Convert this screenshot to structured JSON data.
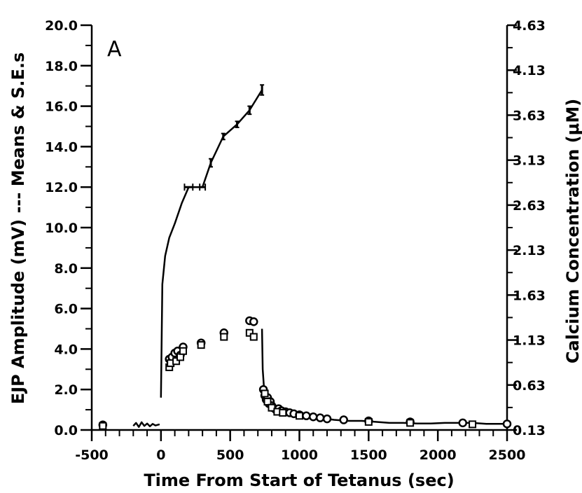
{
  "chart_data": {
    "type": "scatter",
    "panel_label": "A",
    "xlabel": "Time From Start of Tetanus (sec)",
    "ylabel_left": "EJP Amplitude (mV) --- Means & S.E.s",
    "ylabel_right": "Calcium Concentration (μM)",
    "xlim": [
      -500,
      2500
    ],
    "ylim_left": [
      0,
      20
    ],
    "ylim_right": [
      0.13,
      4.63
    ],
    "x_ticks": [
      -500,
      0,
      500,
      1000,
      1500,
      2000,
      2500
    ],
    "x_tick_labels": [
      "-500",
      "0",
      "500",
      "1000",
      "1500",
      "2000",
      "2500"
    ],
    "y_left_ticks": [
      0,
      2,
      4,
      6,
      8,
      10,
      12,
      14,
      16,
      18,
      20
    ],
    "y_left_tick_labels": [
      "0.0",
      "2.0",
      "4.0",
      "6.0",
      "8.0",
      "10.0",
      "12.0",
      "14.0",
      "16.0",
      "18.0",
      "20.0"
    ],
    "y_right_ticks": [
      0.13,
      0.63,
      1.13,
      1.63,
      2.13,
      2.63,
      3.13,
      3.63,
      4.13,
      4.63
    ],
    "y_right_tick_labels": [
      "0.13",
      "0.63",
      "1.13",
      "1.63",
      "2.13",
      "2.63",
      "3.13",
      "3.63",
      "4.13",
      "4.63"
    ],
    "grid": false,
    "legend": "none",
    "series": [
      {
        "type": "line",
        "axis": "left",
        "x": [
          0,
          10,
          30,
          60,
          100,
          150,
          200,
          250,
          300,
          360,
          450,
          550,
          640,
          730
        ],
        "y": [
          1.6,
          7.2,
          8.6,
          9.5,
          10.2,
          11.2,
          12.0,
          12.0,
          12.0,
          13.2,
          14.5,
          15.1,
          15.8,
          16.8
        ],
        "error_bars": [
          {
            "x": 200,
            "y": 12.0,
            "xerr": 30
          },
          {
            "x": 300,
            "y": 12.0,
            "xerr": 20
          },
          {
            "x": 360,
            "y": 13.2,
            "yerr": 0.2
          },
          {
            "x": 450,
            "y": 14.5,
            "yerr": 0.15
          },
          {
            "x": 550,
            "y": 15.1,
            "yerr": 0.15
          },
          {
            "x": 640,
            "y": 15.8,
            "yerr": 0.2
          },
          {
            "x": 730,
            "y": 16.8,
            "yerr": 0.25
          }
        ]
      },
      {
        "type": "line",
        "axis": "left",
        "x": [
          -200,
          -180,
          -160,
          -140,
          -120,
          -100,
          -80,
          -60,
          -40,
          -10
        ],
        "y": [
          0.2,
          0.35,
          0.15,
          0.38,
          0.2,
          0.32,
          0.18,
          0.3,
          0.22,
          0.28
        ]
      },
      {
        "type": "line",
        "axis": "left",
        "x": [
          730,
          735,
          745,
          760,
          780,
          800,
          830,
          870,
          920,
          980,
          1050,
          1150,
          1250,
          1350,
          1450,
          1550,
          1650,
          1750,
          1850,
          1950,
          2050,
          2150,
          2250,
          2350,
          2450,
          2500
        ],
        "y": [
          5.0,
          3.0,
          2.0,
          1.6,
          1.3,
          1.2,
          1.05,
          0.95,
          0.85,
          0.75,
          0.65,
          0.6,
          0.5,
          0.45,
          0.45,
          0.4,
          0.35,
          0.35,
          0.32,
          0.32,
          0.35,
          0.35,
          0.35,
          0.3,
          0.3,
          0.3
        ]
      },
      {
        "type": "scatter",
        "marker": "circle",
        "axis": "left",
        "x": [
          -420,
          60,
          80,
          100,
          120,
          140,
          160,
          290,
          455,
          640,
          670,
          740,
          750,
          760,
          770,
          780,
          790,
          800,
          810,
          830,
          850,
          870,
          900,
          930,
          960,
          1000,
          1050,
          1100,
          1150,
          1200,
          1320,
          1500,
          1800,
          2180,
          2500
        ],
        "y": [
          0.25,
          3.5,
          3.6,
          3.8,
          3.9,
          3.7,
          4.1,
          4.3,
          4.8,
          5.4,
          5.35,
          2.0,
          1.7,
          1.5,
          1.6,
          1.3,
          1.4,
          1.2,
          1.1,
          1.0,
          1.05,
          0.95,
          0.9,
          0.85,
          0.8,
          0.75,
          0.7,
          0.65,
          0.6,
          0.55,
          0.5,
          0.45,
          0.4,
          0.35,
          0.3
        ]
      },
      {
        "type": "scatter",
        "marker": "square",
        "axis": "left",
        "x": [
          -420,
          60,
          70,
          110,
          140,
          160,
          290,
          455,
          640,
          670,
          750,
          770,
          800,
          840,
          880,
          1000,
          1500,
          1800,
          2250
        ],
        "y": [
          0.2,
          3.1,
          3.3,
          3.4,
          3.6,
          3.9,
          4.2,
          4.6,
          4.8,
          4.6,
          1.8,
          1.4,
          1.1,
          0.9,
          0.85,
          0.7,
          0.4,
          0.35,
          0.28
        ]
      }
    ]
  }
}
